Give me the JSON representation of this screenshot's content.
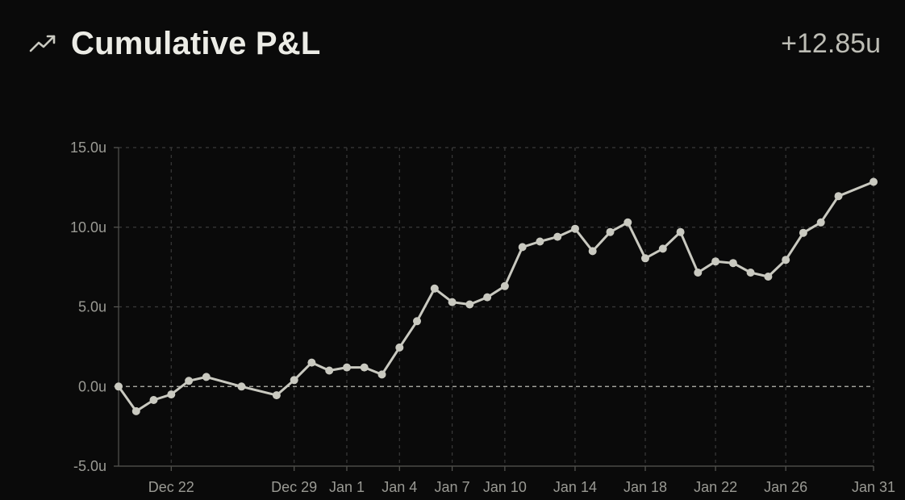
{
  "header": {
    "title": "Cumulative P&L",
    "total": "+12.85u",
    "icon": "trending-up-icon"
  },
  "colors": {
    "background": "#0a0a0a",
    "line": "#c9c9c0",
    "grid": "#3a3a3a",
    "zero_line": "#bcbcb4",
    "text_muted": "#9a9a94",
    "text_main": "#ecece6"
  },
  "chart_data": {
    "type": "line",
    "title": "Cumulative P&L",
    "xlabel": "",
    "ylabel": "",
    "ylim": [
      -5,
      15
    ],
    "y_ticks": [
      15,
      10,
      5,
      0,
      -5
    ],
    "y_tick_labels": [
      "15.0u",
      "10.0u",
      "5.0u",
      "0.0u",
      "-5.0u"
    ],
    "x_ticks": [
      {
        "date": "2023-12-22",
        "label": "Dec 22"
      },
      {
        "date": "2023-12-29",
        "label": "Dec 29"
      },
      {
        "date": "2024-01-01",
        "label": "Jan 1"
      },
      {
        "date": "2024-01-04",
        "label": "Jan 4"
      },
      {
        "date": "2024-01-07",
        "label": "Jan 7"
      },
      {
        "date": "2024-01-10",
        "label": "Jan 10"
      },
      {
        "date": "2024-01-14",
        "label": "Jan 14"
      },
      {
        "date": "2024-01-18",
        "label": "Jan 18"
      },
      {
        "date": "2024-01-22",
        "label": "Jan 22"
      },
      {
        "date": "2024-01-26",
        "label": "Jan 26"
      },
      {
        "date": "2024-01-31",
        "label": "Jan 31"
      }
    ],
    "x_range": [
      "2023-12-19",
      "2024-01-31"
    ],
    "grid": true,
    "zero_line": "dashed",
    "series": [
      {
        "points": [
          {
            "x": "2023-12-19",
            "y": 0.0
          },
          {
            "x": "2023-12-20",
            "y": -1.55
          },
          {
            "x": "2023-12-21",
            "y": -0.85
          },
          {
            "x": "2023-12-22",
            "y": -0.5
          },
          {
            "x": "2023-12-23",
            "y": 0.35
          },
          {
            "x": "2023-12-24",
            "y": 0.6
          },
          {
            "x": "2023-12-26",
            "y": 0.0
          },
          {
            "x": "2023-12-28",
            "y": -0.55
          },
          {
            "x": "2023-12-29",
            "y": 0.4
          },
          {
            "x": "2023-12-30",
            "y": 1.5
          },
          {
            "x": "2023-12-31",
            "y": 1.0
          },
          {
            "x": "2024-01-01",
            "y": 1.2
          },
          {
            "x": "2024-01-02",
            "y": 1.2
          },
          {
            "x": "2024-01-03",
            "y": 0.75
          },
          {
            "x": "2024-01-04",
            "y": 2.45
          },
          {
            "x": "2024-01-05",
            "y": 4.1
          },
          {
            "x": "2024-01-06",
            "y": 6.15
          },
          {
            "x": "2024-01-07",
            "y": 5.3
          },
          {
            "x": "2024-01-08",
            "y": 5.15
          },
          {
            "x": "2024-01-09",
            "y": 5.6
          },
          {
            "x": "2024-01-10",
            "y": 6.3
          },
          {
            "x": "2024-01-11",
            "y": 8.75
          },
          {
            "x": "2024-01-12",
            "y": 9.1
          },
          {
            "x": "2024-01-13",
            "y": 9.4
          },
          {
            "x": "2024-01-14",
            "y": 9.9
          },
          {
            "x": "2024-01-15",
            "y": 8.5
          },
          {
            "x": "2024-01-16",
            "y": 9.7
          },
          {
            "x": "2024-01-17",
            "y": 10.3
          },
          {
            "x": "2024-01-18",
            "y": 8.05
          },
          {
            "x": "2024-01-19",
            "y": 8.65
          },
          {
            "x": "2024-01-20",
            "y": 9.7
          },
          {
            "x": "2024-01-21",
            "y": 7.15
          },
          {
            "x": "2024-01-22",
            "y": 7.85
          },
          {
            "x": "2024-01-23",
            "y": 7.75
          },
          {
            "x": "2024-01-24",
            "y": 7.15
          },
          {
            "x": "2024-01-25",
            "y": 6.9
          },
          {
            "x": "2024-01-26",
            "y": 7.95
          },
          {
            "x": "2024-01-27",
            "y": 9.65
          },
          {
            "x": "2024-01-28",
            "y": 10.3
          },
          {
            "x": "2024-01-29",
            "y": 11.95
          },
          {
            "x": "2024-01-31",
            "y": 12.85
          }
        ]
      }
    ]
  }
}
